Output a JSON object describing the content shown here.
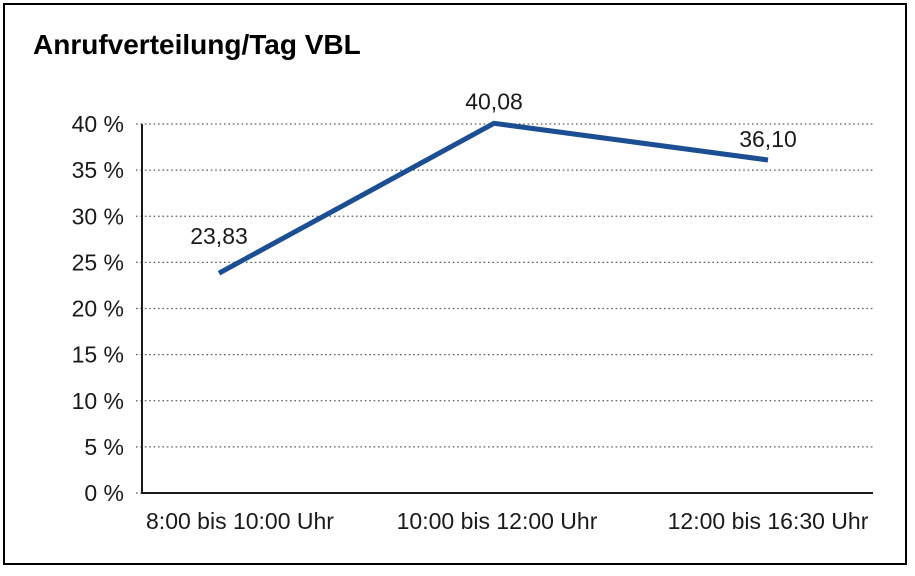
{
  "chart_data": {
    "type": "line",
    "title": "Anrufverteilung/Tag VBL",
    "categories": [
      "8:00 bis 10:00 Uhr",
      "10:00 bis 12:00 Uhr",
      "12:00 bis 16:30 Uhr"
    ],
    "values": [
      23.83,
      40.08,
      36.1
    ],
    "data_labels": [
      "23,83",
      "40,08",
      "36,10"
    ],
    "xlabel": "",
    "ylabel": "",
    "ylim": [
      0,
      40
    ],
    "y_tick_step": 5,
    "y_ticks": [
      0,
      5,
      10,
      15,
      20,
      25,
      30,
      35,
      40
    ],
    "y_tick_labels": [
      "0 %",
      "5 %",
      "10 %",
      "15 %",
      "20 %",
      "25 %",
      "30 %",
      "35 %",
      "40 %"
    ],
    "grid": "horizontal-dotted",
    "legend": "none",
    "line_color": "#1b4e93",
    "text_color": "#1a1a1a",
    "axis_color": "#1a1a1a",
    "frame_color": "#000000",
    "background": "#ffffff"
  }
}
